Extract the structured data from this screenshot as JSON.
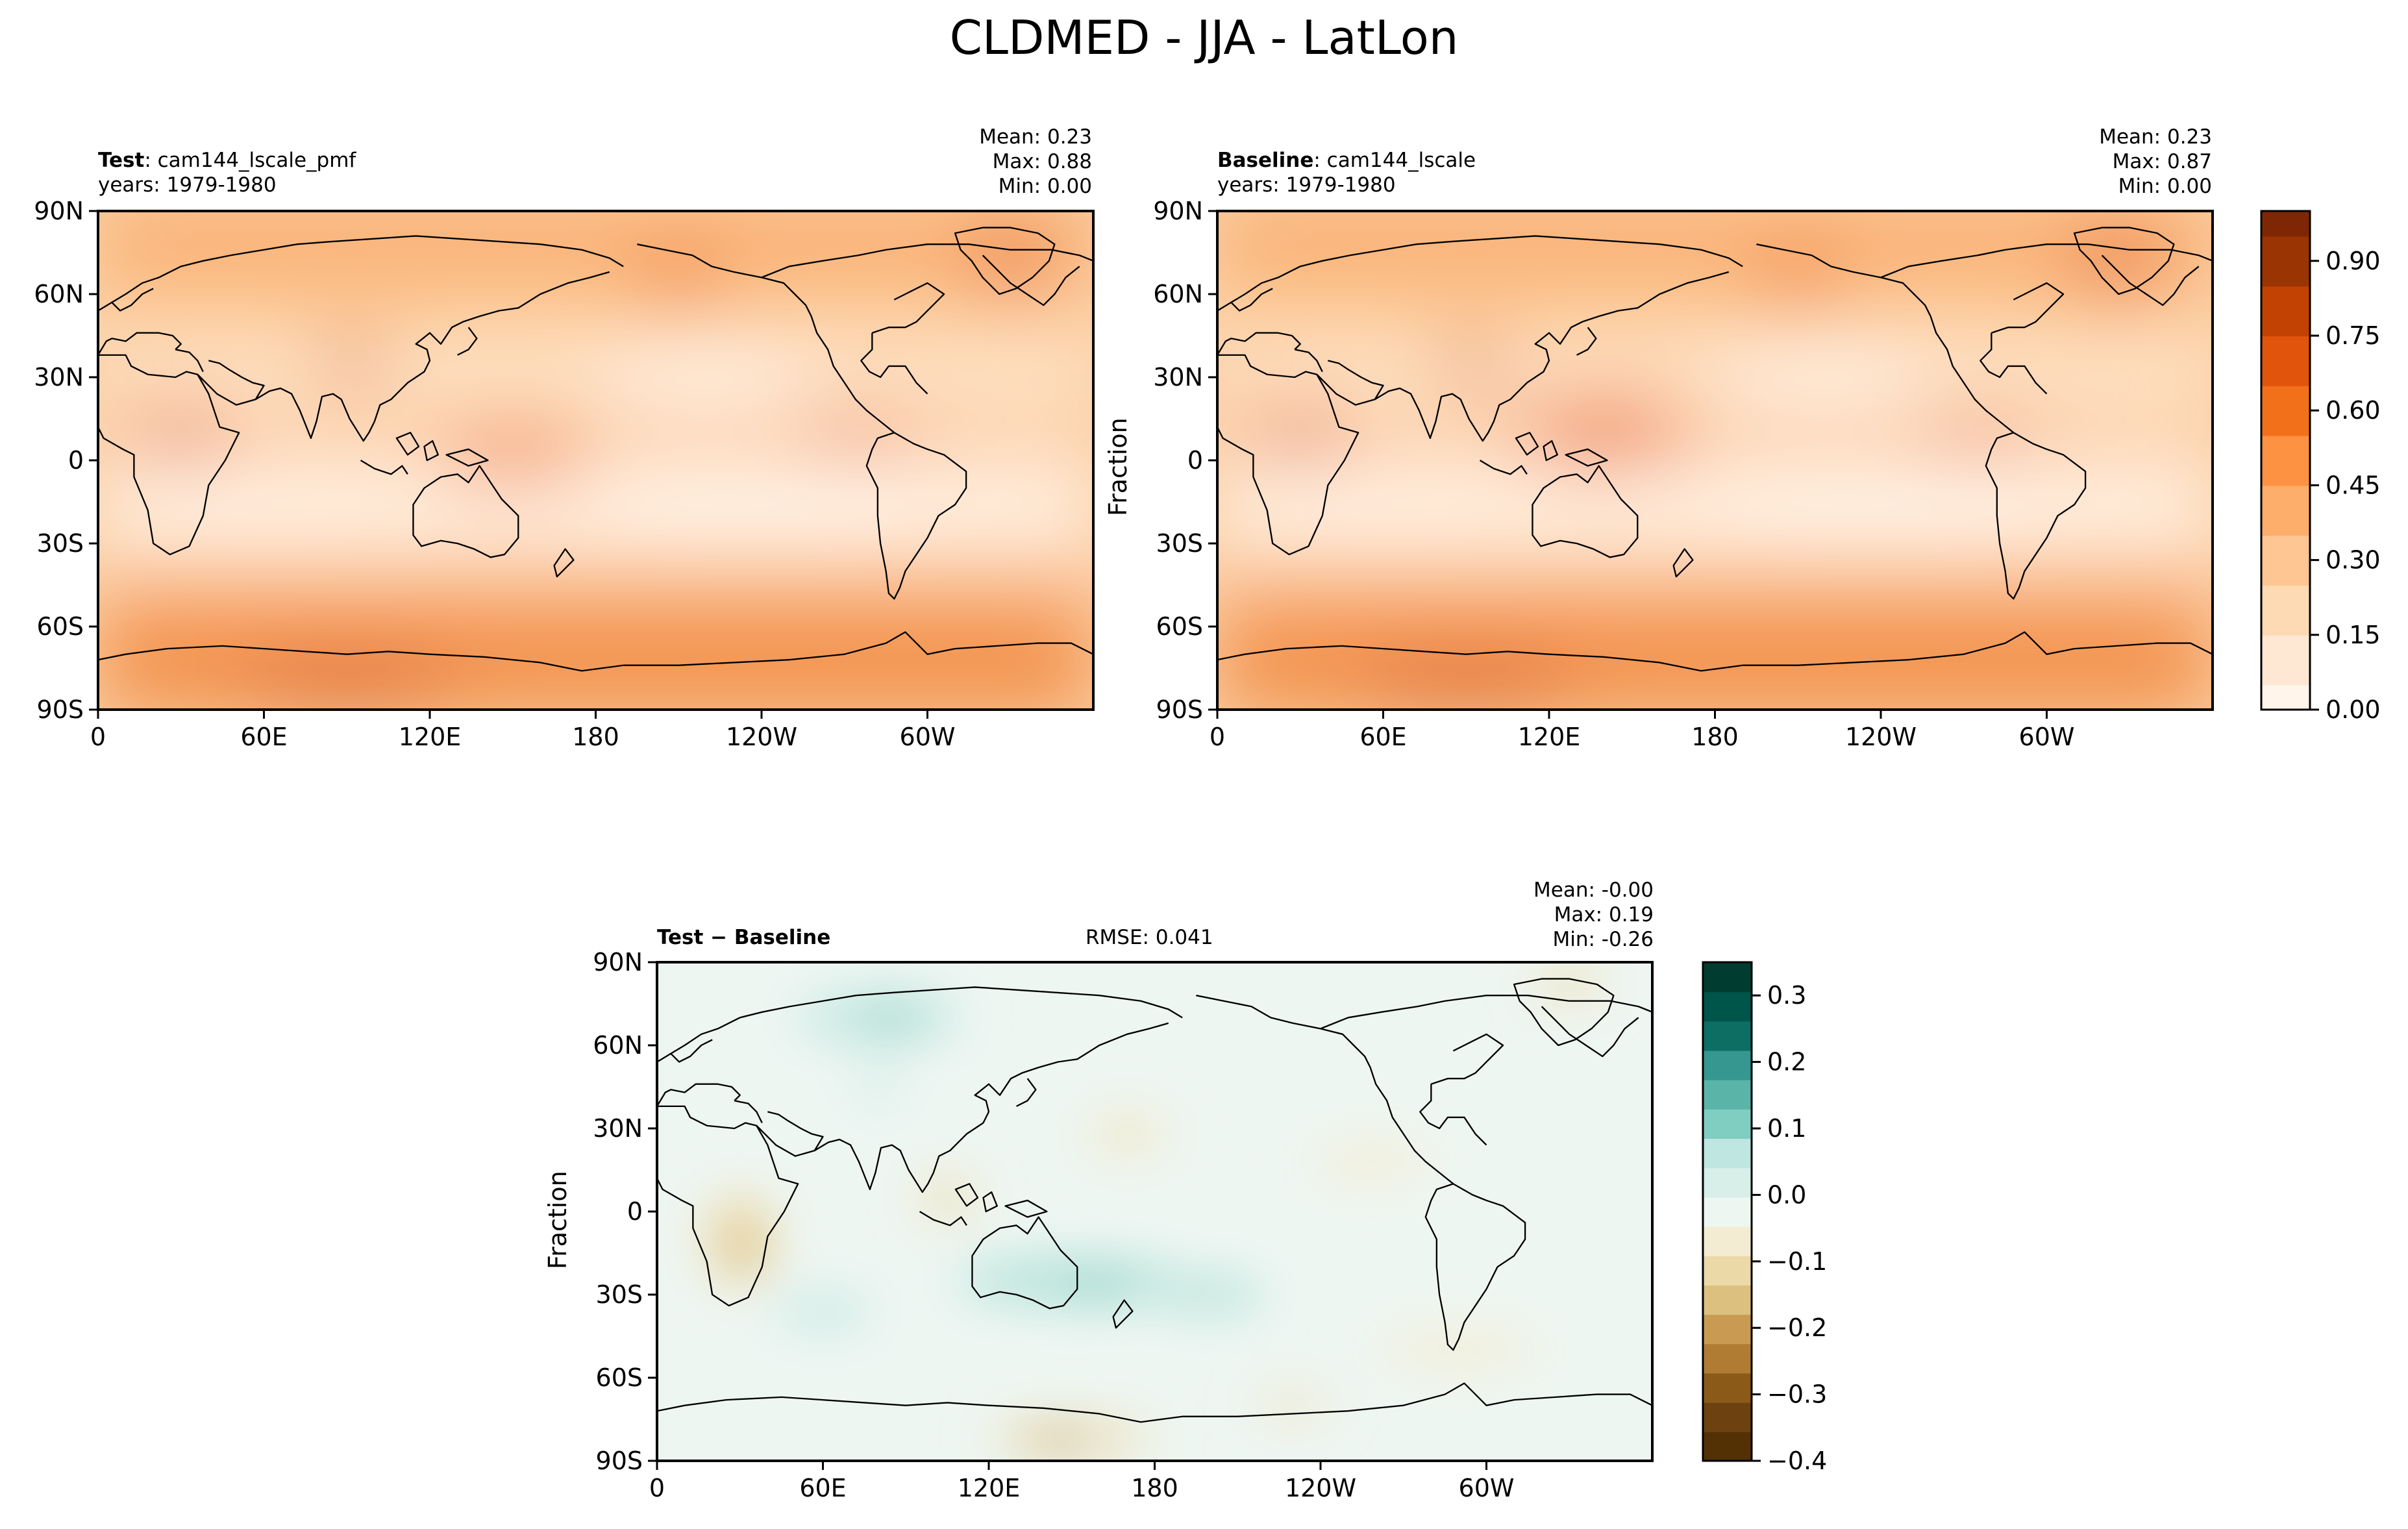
{
  "suptitle": "CLDMED - JJA - LatLon",
  "panels": {
    "test": {
      "label_bold": "Test",
      "label_rest": ": cam144_lscale_pmf",
      "years": "years: 1979-1980",
      "mean": "Mean:  0.23",
      "max": "Max:  0.88",
      "min": "Min:  0.00"
    },
    "baseline": {
      "label_bold": "Baseline",
      "label_rest": ": cam144_lscale",
      "years": "years: 1979-1980",
      "mean": "Mean:  0.23",
      "max": "Max:  0.87",
      "min": "Min:  0.00",
      "ylabel": "Fraction"
    },
    "diff": {
      "label": "Test − Baseline",
      "rmse": "RMSE: 0.041",
      "mean": "Mean: -0.00",
      "max": "Max:  0.19",
      "min": "Min: -0.26",
      "ylabel": "Fraction"
    }
  },
  "chart_data": [
    {
      "type": "heatmap",
      "panel": "Test",
      "x_ticks": [
        "0",
        "60E",
        "120E",
        "180",
        "120W",
        "60W"
      ],
      "y_ticks": [
        "90N",
        "60N",
        "30N",
        "0",
        "30S",
        "60S",
        "90S"
      ],
      "xlim": [
        0,
        360
      ],
      "ylim": [
        -90,
        90
      ],
      "stats": {
        "mean": 0.23,
        "max": 0.88,
        "min": 0.0
      },
      "colormap": "Oranges"
    },
    {
      "type": "heatmap",
      "panel": "Baseline",
      "x_ticks": [
        "0",
        "60E",
        "120E",
        "180",
        "120W",
        "60W"
      ],
      "y_ticks": [
        "90N",
        "60N",
        "30N",
        "0",
        "30S",
        "60S",
        "90S"
      ],
      "xlim": [
        0,
        360
      ],
      "ylim": [
        -90,
        90
      ],
      "stats": {
        "mean": 0.23,
        "max": 0.87,
        "min": 0.0
      },
      "colormap": "Oranges",
      "colorbar": {
        "ticks": [
          "0.00",
          "0.15",
          "0.30",
          "0.45",
          "0.60",
          "0.75",
          "0.90"
        ],
        "range": [
          0,
          1.0
        ]
      }
    },
    {
      "type": "heatmap",
      "panel": "Test − Baseline",
      "x_ticks": [
        "0",
        "60E",
        "120E",
        "180",
        "120W",
        "60W"
      ],
      "y_ticks": [
        "90N",
        "60N",
        "30N",
        "0",
        "30S",
        "60S",
        "90S"
      ],
      "xlim": [
        0,
        360
      ],
      "ylim": [
        -90,
        90
      ],
      "stats": {
        "mean": -0.0,
        "max": 0.19,
        "min": -0.26,
        "rmse": 0.041
      },
      "colormap": "BrBG",
      "colorbar": {
        "ticks": [
          "0.3",
          "0.2",
          "0.1",
          "0.0",
          "−0.1",
          "−0.2",
          "−0.3",
          "−0.4"
        ],
        "range": [
          -0.4,
          0.35
        ]
      }
    }
  ],
  "colors": {
    "oranges_low": "#fff5eb",
    "oranges_high": "#7f2704",
    "brbg_low": "#543005",
    "brbg_mid": "#f5f5f5",
    "brbg_high": "#003c30"
  }
}
